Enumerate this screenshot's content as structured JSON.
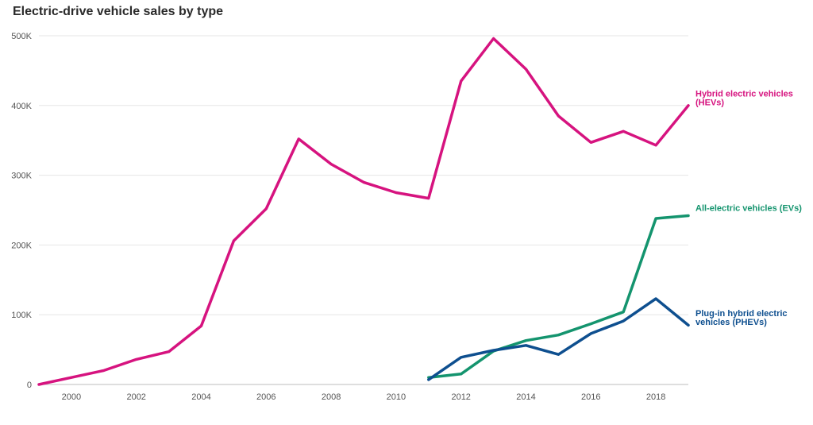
{
  "chart_data": {
    "type": "line",
    "title": "Electric-drive vehicle sales by type",
    "xlabel": "",
    "ylabel": "",
    "xlim": [
      1999,
      2019
    ],
    "ylim": [
      0,
      500000
    ],
    "x_ticks": [
      2000,
      2002,
      2004,
      2006,
      2008,
      2010,
      2012,
      2014,
      2016,
      2018
    ],
    "y_ticks": [
      0,
      100000,
      200000,
      300000,
      400000,
      500000
    ],
    "y_tick_labels": [
      "0",
      "100K",
      "200K",
      "300K",
      "400K",
      "500K"
    ],
    "grid": "horizontal",
    "legend": "direct labels at line ends",
    "series": [
      {
        "name": "Hybrid electric vehicles (HEVs)",
        "label_lines": [
          "Hybrid electric vehicles",
          "(HEVs)"
        ],
        "color": "#d6137f",
        "x": [
          1999,
          2000,
          2001,
          2002,
          2003,
          2004,
          2005,
          2006,
          2007,
          2008,
          2009,
          2010,
          2011,
          2012,
          2013,
          2014,
          2015,
          2016,
          2017,
          2018,
          2019
        ],
        "values": [
          0,
          10000,
          20000,
          36000,
          47000,
          84000,
          206000,
          252000,
          352000,
          316000,
          290000,
          275000,
          267000,
          435000,
          496000,
          452000,
          385000,
          347000,
          363000,
          343000,
          400000
        ]
      },
      {
        "name": "All-electric vehicles (EVs)",
        "label_lines": [
          "All-electric vehicles (EVs)"
        ],
        "color": "#14946e",
        "x": [
          2011,
          2012,
          2013,
          2014,
          2015,
          2016,
          2017,
          2018,
          2019
        ],
        "values": [
          10000,
          15000,
          48000,
          63000,
          71000,
          87000,
          104000,
          238000,
          242000
        ]
      },
      {
        "name": "Plug-in hybrid electric vehicles (PHEVs)",
        "label_lines": [
          "Plug-in hybrid electric",
          "vehicles (PHEVs)"
        ],
        "color": "#0e4f8f",
        "x": [
          2011,
          2012,
          2013,
          2014,
          2015,
          2016,
          2017,
          2018,
          2019
        ],
        "values": [
          7000,
          39000,
          49000,
          56000,
          43000,
          73000,
          91000,
          123000,
          85000
        ]
      }
    ]
  }
}
